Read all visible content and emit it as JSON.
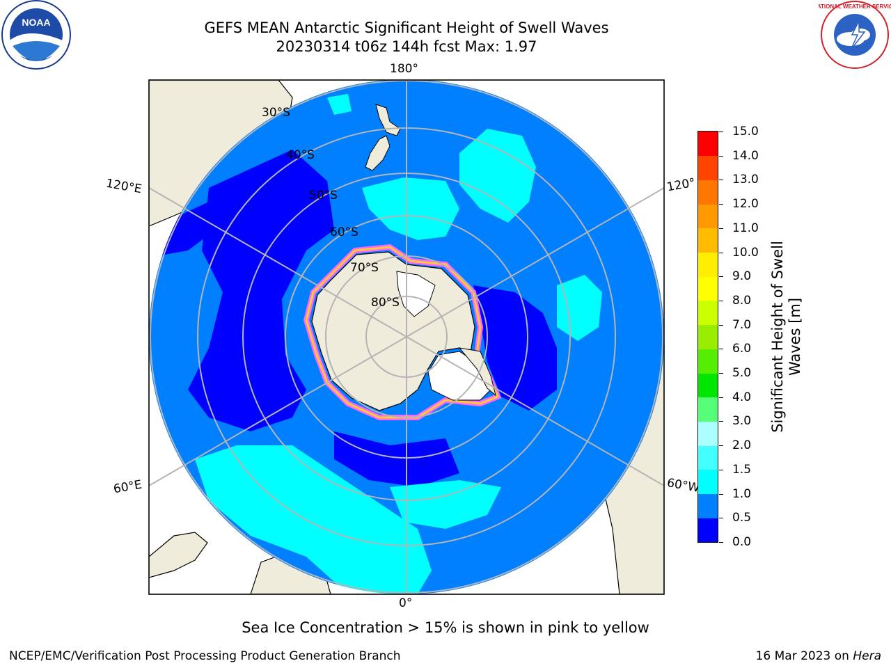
{
  "header": {
    "title_line1": "GEFS MEAN Antarctic Significant Height of Swell Waves",
    "title_line2": "20230314 t06z 144h fcst   Max: 1.97"
  },
  "logos": {
    "left": {
      "text": "NOAA",
      "icon": "noaa-logo-icon"
    },
    "right": {
      "text": "NATIONAL WEATHER SERVICE",
      "icon": "nws-logo-icon"
    }
  },
  "map": {
    "projection": "south polar stereographic",
    "longitude_labels": {
      "top": "180°",
      "bottom": "0°",
      "upper_left": "120°E",
      "upper_right": "120°",
      "lower_left": "60°E",
      "lower_right": "60°W"
    },
    "latitude_labels": [
      "30°S",
      "40°S",
      "50°S",
      "60°S",
      "70°S",
      "80°S"
    ],
    "colors": {
      "land": "#efecdc",
      "ocean_deep": "#0000ff",
      "ocean": "#0080ff",
      "ocean_light": "#00ffff",
      "ice": "#ffffff",
      "grid": "#b4b4b4"
    }
  },
  "colorbar": {
    "title_line1": "Significant Height of Swell",
    "title_line2": "Waves [m]",
    "tick_labels": [
      "0.0",
      "0.5",
      "1.0",
      "1.5",
      "2.0",
      "3.0",
      "4.0",
      "5.0",
      "6.0",
      "7.0",
      "8.0",
      "9.0",
      "10.0",
      "11.0",
      "12.0",
      "13.0",
      "14.0",
      "15.0"
    ],
    "colors": [
      "#0000ff",
      "#0080ff",
      "#00ffff",
      "#44ffff",
      "#aaffff",
      "#55ff77",
      "#00e600",
      "#55ee00",
      "#99ee00",
      "#ccff00",
      "#ffff00",
      "#ffee00",
      "#ffbb00",
      "#ff9900",
      "#ff7700",
      "#ff4400",
      "#ff0000"
    ]
  },
  "footer": {
    "sea_ice_note": "Sea Ice Concentration > 15% is shown in pink to yellow",
    "credit": "NCEP/EMC/Verification Post Processing Product Generation Branch",
    "date_prefix": "16 Mar 2023 on ",
    "date_host": "Hera"
  }
}
